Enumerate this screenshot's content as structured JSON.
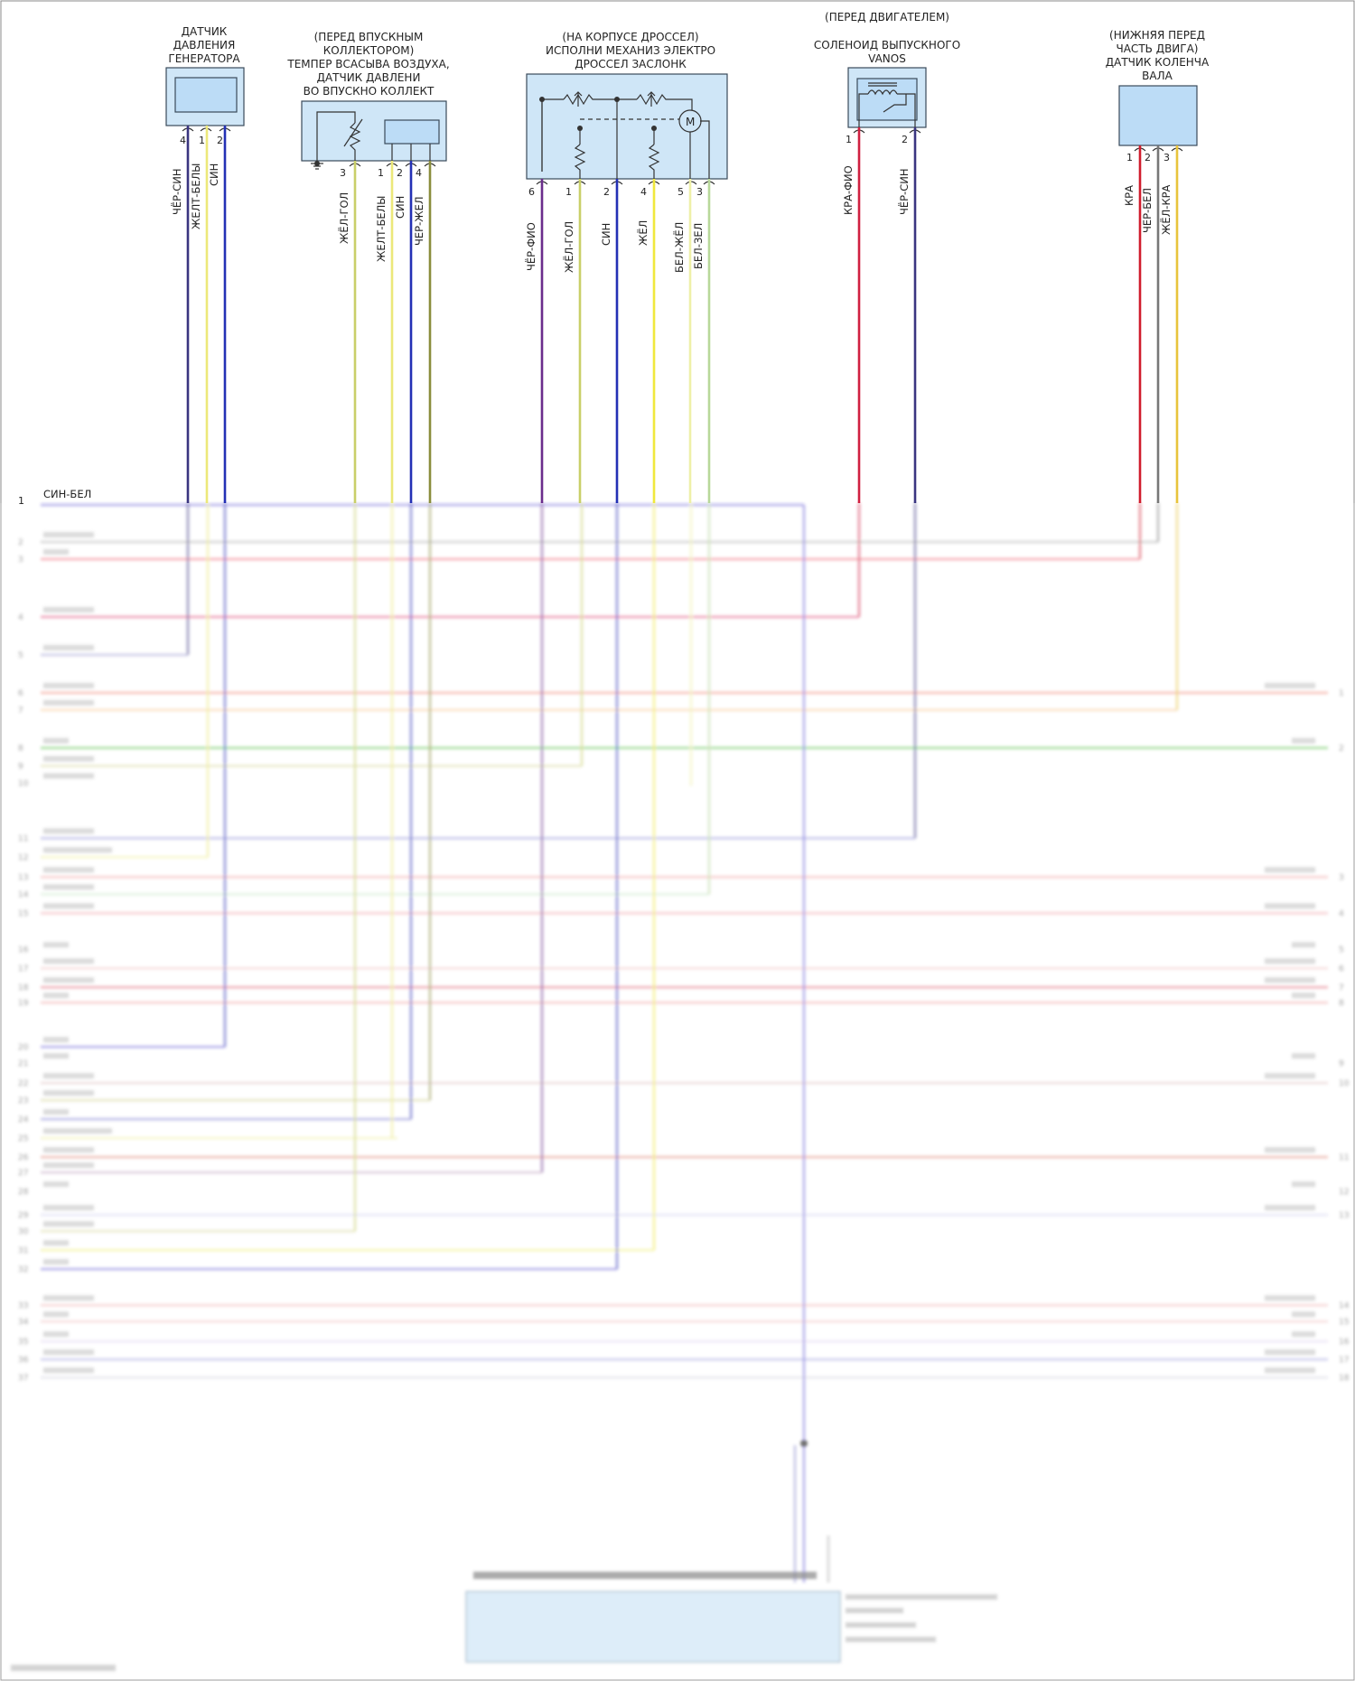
{
  "components": [
    {
      "id": "gen",
      "lines": [
        "ДАТЧИК",
        "ДАВЛЕНИЯ",
        "ГЕНЕРАТОРА"
      ],
      "pins": [
        {
          "n": "4",
          "wire": "ЧЁР-СИН",
          "color": "#3a3580"
        },
        {
          "n": "1",
          "wire": "ЖЕЛТ-БЕЛЫ",
          "color": "#ece87a"
        },
        {
          "n": "2",
          "wire": "СИН",
          "color": "#2330b5"
        }
      ]
    },
    {
      "id": "tmap",
      "lines": [
        "(ПЕРЕД ВПУСКНЫМ",
        "КОЛЛЕКТОРОМ)",
        "ТЕМПЕР ВСАСЫВА ВОЗДУХА,",
        "ДАТЧИК ДАВЛЕНИ",
        "ВО ВПУСКНО КОЛЛЕКТ"
      ],
      "pins": [
        {
          "n": "3",
          "wire": "ЖЁЛ-ГОЛ",
          "color": "#c9cf68"
        },
        {
          "n": "1",
          "wire": "ЖЕЛТ-БЕЛЫ",
          "color": "#ece87a"
        },
        {
          "n": "2",
          "wire": "СИН",
          "color": "#2330b5"
        },
        {
          "n": "4",
          "wire": "ЧЕР-ЖЕЛ",
          "color": "#8a8d3c"
        }
      ]
    },
    {
      "id": "throttle",
      "lines": [
        "(НА КОРПУСЕ ДРОССЕЛ)",
        "ИСПОЛНИ МЕХАНИЗ ЭЛЕКТРО",
        "ДРОССЕЛ ЗАСЛОНК"
      ],
      "pins": [
        {
          "n": "6",
          "wire": "ЧЁР-ФИО",
          "color": "#6b2d8c"
        },
        {
          "n": "1",
          "wire": "ЖЁЛ-ГОЛ",
          "color": "#c9cf68"
        },
        {
          "n": "2",
          "wire": "СИН",
          "color": "#2330b5"
        },
        {
          "n": "4",
          "wire": "ЖЁЛ",
          "color": "#f0e83c"
        },
        {
          "n": "5",
          "wire": "БЕЛ-ЖЁЛ",
          "color": "#eef0a8"
        },
        {
          "n": "3",
          "wire": "БЕЛ-ЗЕЛ",
          "color": "#b8d89a"
        }
      ],
      "motor": "M"
    },
    {
      "id": "vanos",
      "lines": [
        "(ПЕРЕД ДВИГАТЕЛЕМ)",
        "СОЛЕНОИД ВЫПУСКНОГО",
        "VANOS"
      ],
      "pins": [
        {
          "n": "1",
          "wire": "КРА-ФИО",
          "color": "#d02040"
        },
        {
          "n": "2",
          "wire": "ЧЁР-СИН",
          "color": "#3a3580"
        }
      ]
    },
    {
      "id": "crank",
      "lines": [
        "(НИЖНЯЯ ПЕРЕД",
        "ЧАСТЬ ДВИГА)",
        "ДАТЧИК КОЛЕНЧА",
        "ВАЛА"
      ],
      "pins": [
        {
          "n": "1",
          "wire": "КРА",
          "color": "#d01c2c"
        },
        {
          "n": "2",
          "wire": "ЧЕР-БЕЛ",
          "color": "#777777"
        },
        {
          "n": "3",
          "wire": "ЖЁЛ-КРА",
          "color": "#e8c43c"
        }
      ]
    }
  ],
  "harness": {
    "first_pin": "1",
    "first_wire": "СИН-БЕЛ"
  },
  "colors": {
    "box": "#cfe6f7",
    "blue_bus": "#6a62d8"
  }
}
